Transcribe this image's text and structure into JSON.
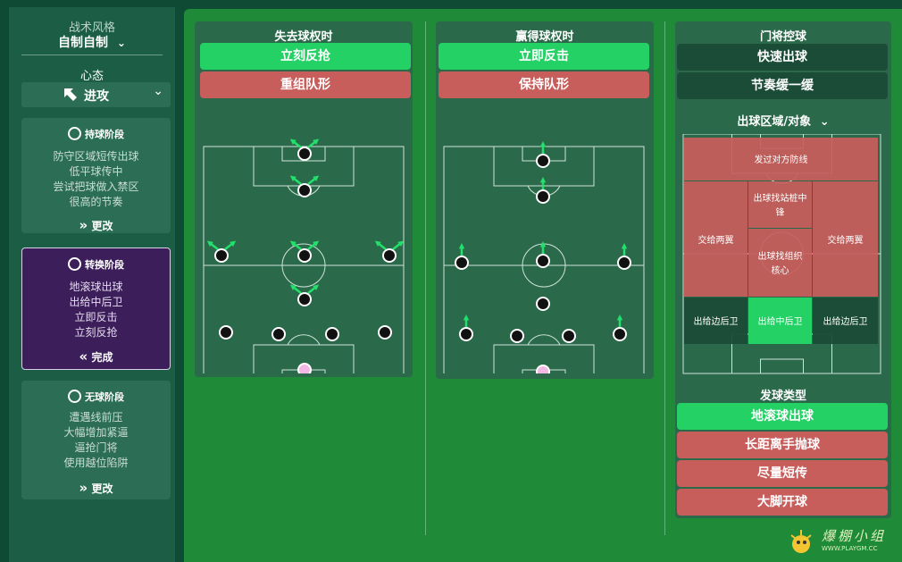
{
  "sidebar": {
    "style_title": "战术风格",
    "style_value": "自制自制",
    "mentality_title": "心态",
    "mentality_value": "进攻",
    "phases": [
      {
        "icon": "football-icon",
        "title": "持球阶段",
        "lines": [
          "防守区域短传出球",
          "低平球传中",
          "尝试把球做入禁区",
          "很高的节奏"
        ],
        "button": "更改"
      },
      {
        "icon": "transition-icon",
        "title": "转换阶段",
        "lines": [
          "地滚球出球",
          "出给中后卫",
          "立即反击",
          "立刻反抢"
        ],
        "button": "完成"
      },
      {
        "icon": "no-ball-icon",
        "title": "无球阶段",
        "lines": [
          "遭遇线前压",
          "大幅增加紧逼",
          "逼抢门将",
          "使用越位陷阱"
        ],
        "button": "更改"
      }
    ]
  },
  "lose_ball": {
    "title": "失去球权时",
    "options": [
      "立刻反抢",
      "重组队形"
    ],
    "selected": 0
  },
  "win_ball": {
    "title": "赢得球权时",
    "options": [
      "立即反击",
      "保持队形"
    ],
    "selected": 0
  },
  "goalkeeper": {
    "title": "门将控球",
    "options": [
      "快速出球",
      "节奏缓一缓"
    ],
    "distribution_area_label": "出球区域/对象",
    "zones": {
      "top": "发过对方防线",
      "striker_1": "出球找站桩中",
      "striker_2": "锋",
      "left_wing": "交给两翼",
      "right_wing": "交给两翼",
      "playmaker_1": "出球找组织",
      "playmaker_2": "核心",
      "fb_left": "出给边后卫",
      "cb": "出给中后卫",
      "fb_right": "出给边后卫"
    },
    "selected_zone": "cb",
    "kick_type_title": "发球类型",
    "kick_types": [
      "地滚球出球",
      "长距离手抛球",
      "尽量短传",
      "大脚开球"
    ],
    "selected_kick": 0
  },
  "watermark": {
    "brand": "爆棚小组",
    "url": "WWW.PLAYGM.CC"
  },
  "colors": {
    "selected": "#23d165",
    "unselected": "#c85e5c",
    "dark_option": "#1b4c38",
    "panel": "#2a6a4a",
    "main_bg": "#1f8a38",
    "sidebar_bg": "#1b5e45",
    "active_card": "#3c1e5a"
  }
}
